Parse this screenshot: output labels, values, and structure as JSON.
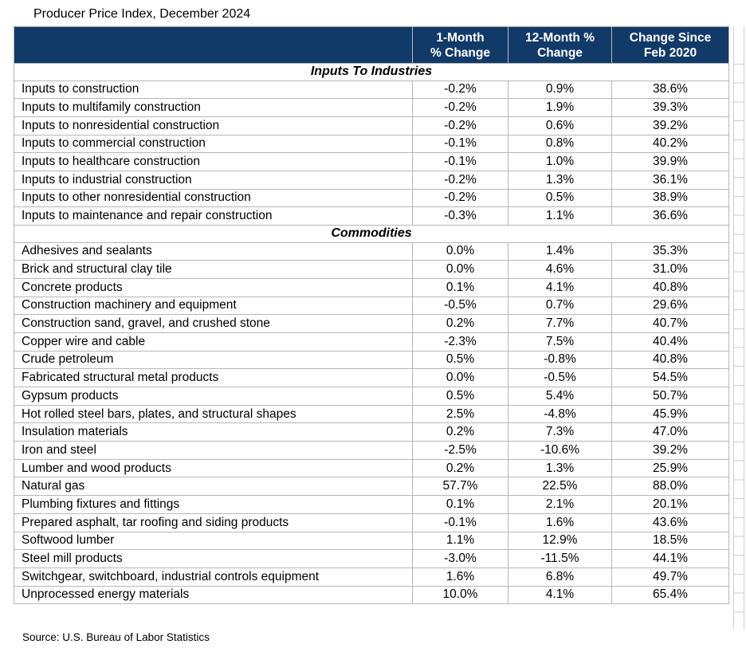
{
  "title": "Producer Price Index, December 2024",
  "source_note": "Source: U.S. Bureau of Labor Statistics",
  "colors": {
    "header_bg": "#123A68",
    "header_text": "#FFFFFF",
    "grid_line": "#B7B7B7"
  },
  "chart_data": {
    "type": "table",
    "title": "Producer Price Index, December 2024",
    "columns": [
      "",
      "1-Month % Change",
      "12-Month % Change",
      "Change Since Feb 2020"
    ],
    "column_header_lines": [
      {
        "line1": "1-Month",
        "line2": "% Change"
      },
      {
        "line1": "12-Month %",
        "line2": "Change"
      },
      {
        "line1": "Change Since",
        "line2": "Feb 2020"
      }
    ],
    "sections": [
      {
        "label": "Inputs To Industries",
        "rows": [
          {
            "name": "Inputs to construction",
            "values": [
              "-0.2%",
              "0.9%",
              "38.6%"
            ]
          },
          {
            "name": "Inputs to multifamily construction",
            "values": [
              "-0.2%",
              "1.9%",
              "39.3%"
            ]
          },
          {
            "name": "Inputs to nonresidential construction",
            "values": [
              "-0.2%",
              "0.6%",
              "39.2%"
            ]
          },
          {
            "name": "Inputs to commercial construction",
            "values": [
              "-0.1%",
              "0.8%",
              "40.2%"
            ]
          },
          {
            "name": "Inputs to healthcare construction",
            "values": [
              "-0.1%",
              "1.0%",
              "39.9%"
            ]
          },
          {
            "name": "Inputs to industrial construction",
            "values": [
              "-0.2%",
              "1.3%",
              "36.1%"
            ]
          },
          {
            "name": "Inputs to other nonresidential construction",
            "values": [
              "-0.2%",
              "0.5%",
              "38.9%"
            ]
          },
          {
            "name": "Inputs to maintenance and repair construction",
            "values": [
              "-0.3%",
              "1.1%",
              "36.6%"
            ]
          }
        ]
      },
      {
        "label": "Commodities",
        "rows": [
          {
            "name": "Adhesives and sealants",
            "values": [
              "0.0%",
              "1.4%",
              "35.3%"
            ]
          },
          {
            "name": "Brick and structural clay tile",
            "values": [
              "0.0%",
              "4.6%",
              "31.0%"
            ]
          },
          {
            "name": "Concrete products",
            "values": [
              "0.1%",
              "4.1%",
              "40.8%"
            ]
          },
          {
            "name": "Construction machinery and equipment",
            "values": [
              "-0.5%",
              "0.7%",
              "29.6%"
            ]
          },
          {
            "name": "Construction sand, gravel, and crushed stone",
            "values": [
              "0.2%",
              "7.7%",
              "40.7%"
            ]
          },
          {
            "name": "Copper wire and cable",
            "values": [
              "-2.3%",
              "7.5%",
              "40.4%"
            ]
          },
          {
            "name": "Crude petroleum",
            "values": [
              "0.5%",
              "-0.8%",
              "40.8%"
            ]
          },
          {
            "name": "Fabricated structural metal products",
            "values": [
              "0.0%",
              "-0.5%",
              "54.5%"
            ]
          },
          {
            "name": "Gypsum products",
            "values": [
              "0.5%",
              "5.4%",
              "50.7%"
            ]
          },
          {
            "name": "Hot rolled steel bars, plates, and structural shapes",
            "values": [
              "2.5%",
              "-4.8%",
              "45.9%"
            ]
          },
          {
            "name": "Insulation materials",
            "values": [
              "0.2%",
              "7.3%",
              "47.0%"
            ]
          },
          {
            "name": "Iron and steel",
            "values": [
              "-2.5%",
              "-10.6%",
              "39.2%"
            ]
          },
          {
            "name": "Lumber and wood products",
            "values": [
              "0.2%",
              "1.3%",
              "25.9%"
            ]
          },
          {
            "name": "Natural gas",
            "values": [
              "57.7%",
              "22.5%",
              "88.0%"
            ]
          },
          {
            "name": "Plumbing fixtures and fittings",
            "values": [
              "0.1%",
              "2.1%",
              "20.1%"
            ]
          },
          {
            "name": "Prepared asphalt, tar roofing and siding products",
            "values": [
              "-0.1%",
              "1.6%",
              "43.6%"
            ]
          },
          {
            "name": "Softwood lumber",
            "values": [
              "1.1%",
              "12.9%",
              "18.5%"
            ]
          },
          {
            "name": "Steel mill products",
            "values": [
              "-3.0%",
              "-11.5%",
              "44.1%"
            ]
          },
          {
            "name": "Switchgear, switchboard, industrial controls equipment",
            "values": [
              "1.6%",
              "6.8%",
              "49.7%"
            ]
          },
          {
            "name": "Unprocessed energy materials",
            "values": [
              "10.0%",
              "4.1%",
              "65.4%"
            ]
          }
        ]
      }
    ],
    "source": "Source: U.S. Bureau of Labor Statistics",
    "layout": {
      "grid": "on",
      "value_alignment": "center",
      "label_alignment": "left"
    }
  }
}
